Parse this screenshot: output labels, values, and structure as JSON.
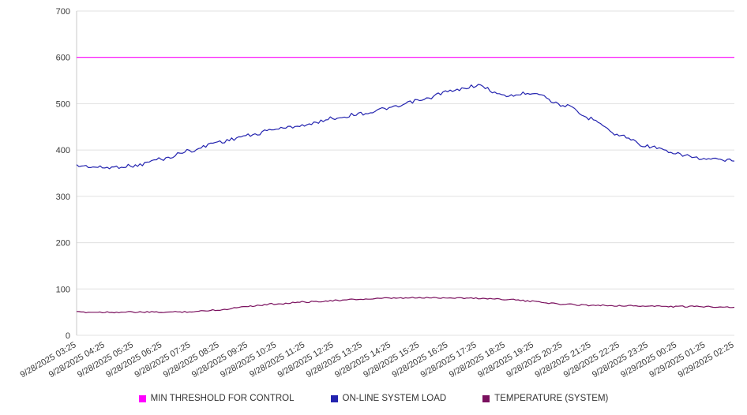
{
  "chart_data": {
    "type": "line",
    "title": "",
    "xlabel": "",
    "ylabel": "",
    "grid": true,
    "legend_position": "bottom",
    "y_axis": {
      "min": 0,
      "max": 700,
      "tick_step": 100,
      "ticks": [
        0,
        100,
        200,
        300,
        400,
        500,
        600,
        700
      ]
    },
    "x_labels": [
      "9/28/2025 03:25",
      "9/28/2025 04:25",
      "9/28/2025 05:25",
      "9/28/2025 06:25",
      "9/28/2025 07:25",
      "9/28/2025 08:25",
      "9/28/2025 09:25",
      "9/28/2025 10:25",
      "9/28/2025 11:25",
      "9/28/2025 12:25",
      "9/28/2025 13:25",
      "9/28/2025 14:25",
      "9/28/2025 15:25",
      "9/28/2025 16:25",
      "9/28/2025 17:25",
      "9/28/2025 18:25",
      "9/28/2025 19:25",
      "9/28/2025 20:25",
      "9/28/2025 21:25",
      "9/28/2025 22:25",
      "9/28/2025 23:25",
      "9/29/2025 00:25",
      "9/29/2025 01:25",
      "9/29/2025 02:25"
    ],
    "series": [
      {
        "name": "MIN THRESHOLD FOR CONTROL",
        "color": "#ff00ff",
        "values": [
          600,
          600,
          600,
          600,
          600,
          600,
          600,
          600,
          600,
          600,
          600,
          600,
          600,
          600,
          600,
          600,
          600,
          600,
          600,
          600,
          600,
          600,
          600,
          600
        ]
      },
      {
        "name": "ON-LINE SYSTEM LOAD",
        "color": "#2323af",
        "values": [
          366,
          362,
          366,
          381,
          399,
          418,
          431,
          446,
          454,
          469,
          479,
          491,
          507,
          526,
          539,
          517,
          524,
          497,
          468,
          431,
          408,
          391,
          380,
          377
        ]
      },
      {
        "name": "TEMPERATURE (SYSTEM)",
        "color": "#7a105e",
        "values": [
          50,
          50,
          50,
          50,
          51,
          55,
          63,
          68,
          72,
          75,
          78,
          80,
          81,
          81,
          80,
          78,
          73,
          67,
          65,
          64,
          63,
          62,
          62,
          61
        ]
      }
    ]
  }
}
